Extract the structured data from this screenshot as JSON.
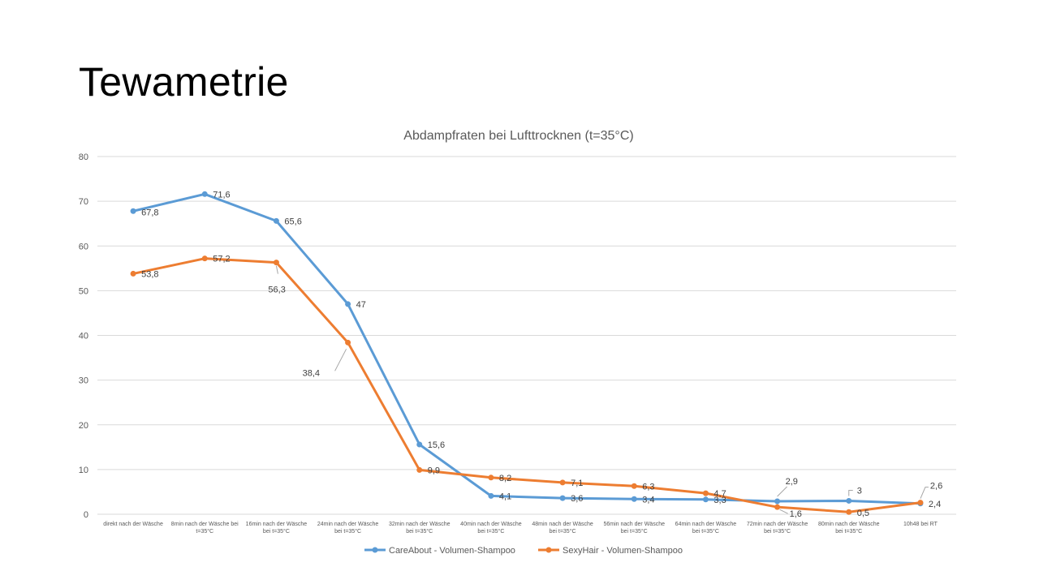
{
  "slide": {
    "title": "Tewametrie"
  },
  "chart_data": {
    "type": "line",
    "title": "Abdampfraten bei Lufttrocknen (t=35°C)",
    "xlabel": "",
    "ylabel": "",
    "ylim": [
      0,
      80
    ],
    "yticks": [
      0,
      10,
      20,
      30,
      40,
      50,
      60,
      70,
      80
    ],
    "grid": true,
    "legend": "bottom",
    "categories": [
      [
        "direkt nach der Wäsche"
      ],
      [
        "8min nach der Wäsche bei",
        "t=35°C"
      ],
      [
        "16min nach der Wäsche",
        "bei t=35°C"
      ],
      [
        "24min nach der Wäsche",
        "bei t=35°C"
      ],
      [
        "32min nach der Wäsche",
        "bei t=35°C"
      ],
      [
        "40min nach der Wäsche",
        "bei t=35°C"
      ],
      [
        "48min nach der Wäsche",
        "bei t=35°C"
      ],
      [
        "56min nach der Wäsche",
        "bei t=35°C"
      ],
      [
        "64min nach der Wäsche",
        "bei t=35°C"
      ],
      [
        "72min nach der Wäsche",
        "bei t=35°C"
      ],
      [
        "80min nach der Wäsche",
        "bei t=35°C"
      ],
      [
        "10h48 bei RT"
      ]
    ],
    "series": [
      {
        "name": "CareAbout - Volumen-Shampoo",
        "color": "#5B9BD5",
        "values": [
          67.8,
          71.6,
          65.6,
          47,
          15.6,
          4.1,
          3.6,
          3.4,
          3.3,
          2.9,
          3,
          2.4
        ],
        "labels": [
          "67,8",
          "71,6",
          "65,6",
          "47",
          "15,6",
          "4,1",
          "3,6",
          "3,4",
          "3,3",
          "2,9",
          "3",
          "2,4"
        ]
      },
      {
        "name": "SexyHair - Volumen-Shampoo",
        "color": "#ED7D31",
        "values": [
          53.8,
          57.2,
          56.3,
          38.4,
          9.9,
          8.2,
          7.1,
          6.3,
          4.7,
          1.6,
          0.5,
          2.6
        ],
        "labels": [
          "53,8",
          "57,2",
          "56,3",
          "38,4",
          "9,9",
          "8,2",
          "7,1",
          "6,3",
          "4,7",
          "1,6",
          "0,5",
          "2,6"
        ]
      }
    ]
  }
}
